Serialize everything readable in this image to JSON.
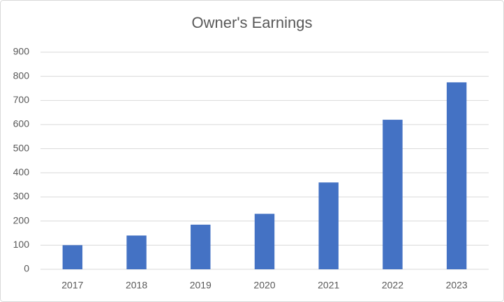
{
  "chart_data": {
    "type": "bar",
    "title": "Owner's Earnings",
    "categories": [
      "2017",
      "2018",
      "2019",
      "2020",
      "2021",
      "2022",
      "2023"
    ],
    "values": [
      100,
      140,
      185,
      230,
      360,
      620,
      775
    ],
    "color": "#4472c4",
    "ylim": [
      0,
      900
    ],
    "yticks": [
      0,
      100,
      200,
      300,
      400,
      500,
      600,
      700,
      800,
      900
    ],
    "grid": true
  }
}
